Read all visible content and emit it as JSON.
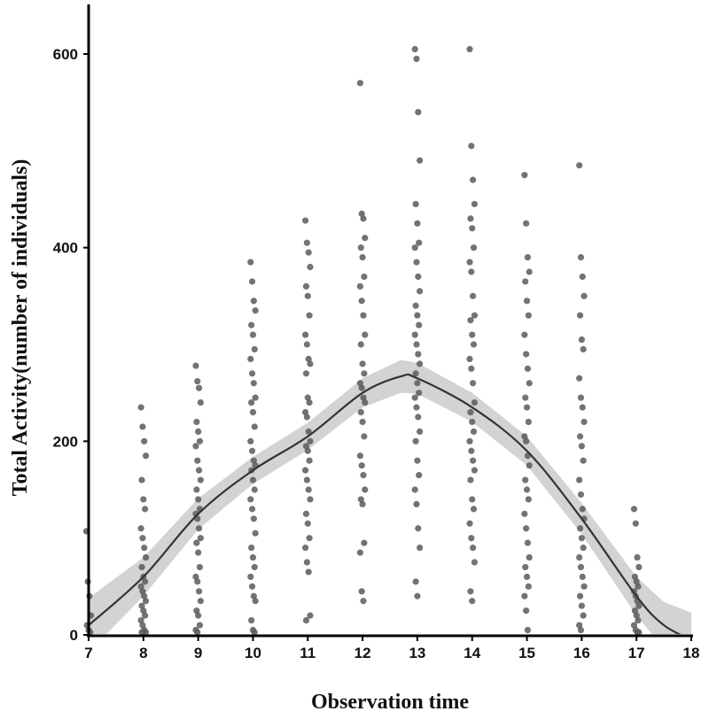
{
  "chart_data": {
    "type": "scatter",
    "title": "",
    "xlabel": "Observation time",
    "ylabel": "Total Activity(number of individuals)",
    "xlim": [
      7,
      18
    ],
    "ylim": [
      0,
      650
    ],
    "xticks": [
      "7",
      "8",
      "9",
      "10",
      "11",
      "12",
      "13",
      "14",
      "15",
      "16",
      "17",
      "18"
    ],
    "yticks": [
      "0",
      "200",
      "400",
      "600"
    ],
    "grid": false,
    "colors": {
      "points": "#5a5a5a",
      "smooth_line": "#333333",
      "confidence_band": "#d3d3d3"
    },
    "points": {
      "7": [
        107,
        55,
        40,
        20,
        10,
        5,
        0
      ],
      "8": [
        235,
        215,
        200,
        185,
        160,
        140,
        130,
        110,
        100,
        90,
        80,
        70,
        60,
        55,
        50,
        45,
        40,
        35,
        30,
        25,
        20,
        15,
        10,
        5,
        2,
        0
      ],
      "9": [
        278,
        262,
        255,
        240,
        220,
        210,
        200,
        195,
        180,
        170,
        160,
        150,
        140,
        130,
        125,
        120,
        110,
        100,
        95,
        85,
        70,
        60,
        55,
        45,
        35,
        25,
        20,
        10,
        5,
        2
      ],
      "10": [
        385,
        365,
        345,
        335,
        320,
        310,
        295,
        285,
        270,
        260,
        245,
        240,
        230,
        215,
        200,
        190,
        180,
        175,
        170,
        160,
        150,
        140,
        130,
        120,
        105,
        90,
        80,
        70,
        60,
        50,
        40,
        35,
        15,
        5,
        0
      ],
      "11": [
        428,
        405,
        395,
        380,
        360,
        350,
        330,
        310,
        300,
        285,
        280,
        270,
        245,
        240,
        230,
        225,
        210,
        200,
        195,
        190,
        180,
        170,
        160,
        150,
        140,
        125,
        115,
        100,
        90,
        75,
        65,
        20,
        15
      ],
      "12": [
        570,
        435,
        430,
        410,
        400,
        390,
        370,
        360,
        345,
        330,
        310,
        300,
        280,
        270,
        260,
        255,
        245,
        240,
        230,
        220,
        205,
        185,
        175,
        165,
        150,
        140,
        135,
        95,
        85,
        45,
        35
      ],
      "13": [
        605,
        595,
        540,
        490,
        445,
        425,
        405,
        400,
        385,
        370,
        355,
        340,
        330,
        320,
        310,
        300,
        290,
        280,
        270,
        260,
        250,
        245,
        235,
        225,
        210,
        200,
        180,
        165,
        150,
        135,
        110,
        90,
        55,
        40
      ],
      "14": [
        605,
        505,
        470,
        445,
        430,
        420,
        400,
        385,
        375,
        350,
        330,
        325,
        310,
        300,
        285,
        275,
        260,
        240,
        230,
        220,
        210,
        200,
        190,
        180,
        170,
        160,
        140,
        130,
        115,
        100,
        90,
        75,
        45,
        35
      ],
      "15": [
        475,
        425,
        390,
        375,
        365,
        345,
        330,
        310,
        290,
        275,
        260,
        245,
        235,
        220,
        205,
        200,
        185,
        175,
        160,
        150,
        140,
        125,
        110,
        95,
        80,
        70,
        60,
        50,
        40,
        25,
        5
      ],
      "16": [
        485,
        390,
        370,
        350,
        330,
        305,
        295,
        265,
        245,
        235,
        220,
        205,
        195,
        180,
        160,
        145,
        130,
        120,
        110,
        100,
        90,
        80,
        70,
        60,
        50,
        40,
        30,
        20,
        10,
        5
      ],
      "17": [
        130,
        115,
        80,
        70,
        60,
        55,
        50,
        45,
        40,
        35,
        30,
        25,
        20,
        15,
        10,
        5,
        2,
        0
      ]
    },
    "smooth_fit": {
      "x": [
        7,
        8,
        9,
        10,
        11,
        12,
        12.7,
        13,
        14,
        15,
        16,
        17,
        17.5,
        18
      ],
      "y": [
        10,
        60,
        125,
        170,
        205,
        250,
        267,
        265,
        235,
        190,
        120,
        40,
        10,
        -5
      ],
      "band_halfwidth": [
        28,
        20,
        16,
        14,
        14,
        15,
        17,
        16,
        15,
        15,
        16,
        20,
        24,
        28
      ]
    }
  }
}
